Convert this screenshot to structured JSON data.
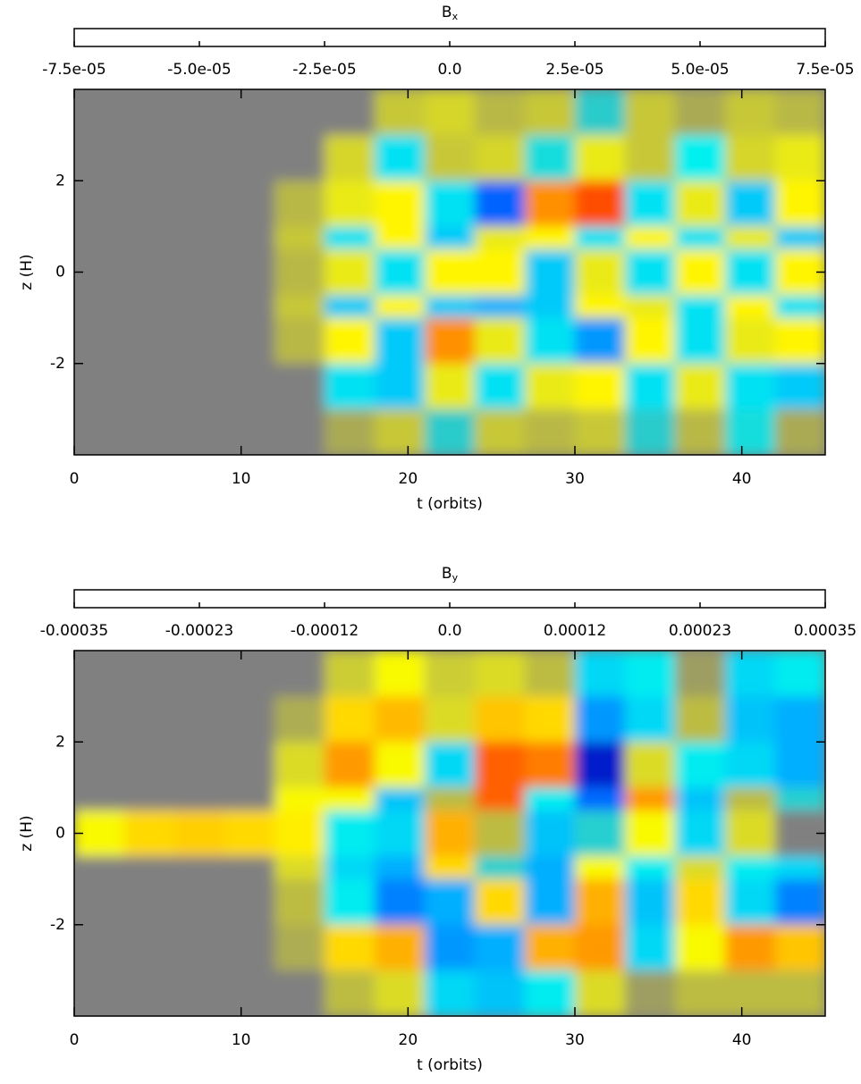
{
  "chart_data": [
    {
      "type": "heatmap",
      "title": "B",
      "title_sub": "x",
      "xlabel": "t (orbits)",
      "ylabel": "z (H)",
      "xlim": [
        0,
        45
      ],
      "ylim": [
        -4,
        4
      ],
      "xticks": [
        0,
        10,
        20,
        30,
        40
      ],
      "yticks": [
        -2,
        0,
        2
      ],
      "clim": [
        -7.5e-05,
        7.5e-05
      ],
      "cticks": [
        {
          "value": -7.5e-05,
          "label": "-7.5e-05"
        },
        {
          "value": -5e-05,
          "label": "-5.0e-05"
        },
        {
          "value": -2.5e-05,
          "label": "-2.5e-05"
        },
        {
          "value": 0,
          "label": "0.0"
        },
        {
          "value": 2.5e-05,
          "label": "2.5e-05"
        },
        {
          "value": 5e-05,
          "label": "5.0e-05"
        },
        {
          "value": 7.5e-05,
          "label": "7.5e-05"
        }
      ],
      "colormap": [
        {
          "at": 0,
          "color": "#000080"
        },
        {
          "at": 0.17,
          "color": "#0030ff"
        },
        {
          "at": 0.33,
          "color": "#00b0ff"
        },
        {
          "at": 0.42,
          "color": "#00f0f0"
        },
        {
          "at": 0.5,
          "color": "#808080"
        },
        {
          "at": 0.62,
          "color": "#ffff00"
        },
        {
          "at": 0.75,
          "color": "#ffa000"
        },
        {
          "at": 0.88,
          "color": "#ff2000"
        },
        {
          "at": 1,
          "color": "#800000"
        }
      ],
      "xbins": [
        0,
        3,
        6,
        9,
        12,
        15,
        18,
        21,
        24,
        27,
        30,
        33,
        36,
        39,
        42,
        45
      ],
      "ybins": [
        4,
        3,
        2,
        1,
        0.5,
        -0.5,
        -1,
        -2,
        -3,
        -4
      ],
      "values": [
        [
          0,
          0,
          0,
          0,
          0,
          0,
          1e-05,
          1.2e-05,
          8e-06,
          1e-05,
          -8e-06,
          1e-05,
          6e-06,
          1e-05,
          8e-06
        ],
        [
          0,
          0,
          0,
          0,
          0,
          1.2e-05,
          -1.5e-05,
          1e-05,
          1.2e-05,
          -1e-05,
          1.5e-05,
          1e-05,
          -1.2e-05,
          1.2e-05,
          1.5e-05
        ],
        [
          0,
          0,
          0,
          0,
          8e-06,
          1.5e-05,
          2e-05,
          -1.5e-05,
          -4e-05,
          4e-05,
          5e-05,
          -1.5e-05,
          1.5e-05,
          -2e-05,
          2e-05
        ],
        [
          0,
          0,
          0,
          0,
          1e-05,
          -1.5e-05,
          2e-05,
          -2e-05,
          1.5e-05,
          2e-05,
          -1.5e-05,
          2e-05,
          -1.5e-05,
          1.5e-05,
          -2e-05
        ],
        [
          0,
          0,
          0,
          0,
          8e-06,
          1.5e-05,
          -1.5e-05,
          2e-05,
          2e-05,
          -2e-05,
          1.5e-05,
          -1.5e-05,
          2e-05,
          -1.5e-05,
          2e-05
        ],
        [
          0,
          0,
          0,
          0,
          1e-05,
          -2e-05,
          2e-05,
          -2e-05,
          -2.5e-05,
          -2e-05,
          2e-05,
          1.5e-05,
          -1.5e-05,
          2e-05,
          -1.5e-05
        ],
        [
          0,
          0,
          0,
          0,
          8e-06,
          2e-05,
          -2e-05,
          4e-05,
          1.5e-05,
          -1.5e-05,
          -3e-05,
          2e-05,
          -1.5e-05,
          1.5e-05,
          2e-05
        ],
        [
          0,
          0,
          0,
          0,
          0,
          -1.5e-05,
          -2e-05,
          1.5e-05,
          -1.5e-05,
          1.5e-05,
          2e-05,
          -1.5e-05,
          1.5e-05,
          -1.5e-05,
          -2e-05
        ],
        [
          0,
          0,
          0,
          0,
          0,
          6e-06,
          1e-05,
          -8e-06,
          1e-05,
          8e-06,
          1e-05,
          -8e-06,
          8e-06,
          -1e-05,
          6e-06
        ]
      ]
    },
    {
      "type": "heatmap",
      "title": "B",
      "title_sub": "y",
      "xlabel": "t (orbits)",
      "ylabel": "z (H)",
      "xlim": [
        0,
        45
      ],
      "ylim": [
        -4,
        4
      ],
      "xticks": [
        0,
        10,
        20,
        30,
        40
      ],
      "yticks": [
        -2,
        0,
        2
      ],
      "clim": [
        -0.00035,
        0.00035
      ],
      "cticks": [
        -0.00035,
        {
          "value": -0.00023333,
          "label": "-0.00023"
        },
        {
          "value": -0.00011667,
          "label": "-0.00012"
        },
        {
          "value": 0,
          "label": "0.0"
        },
        {
          "value": 0.00011667,
          "label": "0.00012"
        },
        {
          "value": 0.00023333,
          "label": "0.00023"
        },
        0.00035
      ],
      "colormap": [
        {
          "at": 0,
          "color": "#000080"
        },
        {
          "at": 0.17,
          "color": "#0030ff"
        },
        {
          "at": 0.33,
          "color": "#00b0ff"
        },
        {
          "at": 0.42,
          "color": "#00f0f0"
        },
        {
          "at": 0.5,
          "color": "#808080"
        },
        {
          "at": 0.62,
          "color": "#ffff00"
        },
        {
          "at": 0.75,
          "color": "#ffa000"
        },
        {
          "at": 0.88,
          "color": "#ff2000"
        },
        {
          "at": 1,
          "color": "#800000"
        }
      ],
      "xbins": [
        0,
        3,
        6,
        9,
        12,
        15,
        18,
        21,
        24,
        27,
        30,
        33,
        36,
        39,
        42,
        45
      ],
      "ybins": [
        4,
        3,
        2,
        1,
        0.5,
        -0.5,
        -1,
        -2,
        -3,
        -4
      ],
      "values": [
        [
          0,
          0,
          0,
          0,
          0,
          5e-05,
          8e-05,
          5e-05,
          6e-05,
          4e-05,
          -8e-05,
          -6e-05,
          2e-05,
          -8e-05,
          -6e-05
        ],
        [
          0,
          0,
          0,
          0,
          3e-05,
          0.00012,
          0.00015,
          6e-05,
          0.00014,
          0.00012,
          -0.00014,
          -8e-05,
          4e-05,
          -0.0001,
          -0.00012
        ],
        [
          0,
          0,
          0,
          0,
          6e-05,
          0.00018,
          8e-05,
          -8e-05,
          0.00022,
          0.0002,
          -0.00028,
          6e-05,
          -6e-05,
          -8e-05,
          -0.00012
        ],
        [
          0,
          0,
          0,
          0,
          8e-05,
          8e-05,
          -0.0001,
          4e-05,
          0.00022,
          -6e-05,
          -0.00018,
          0.00018,
          -0.0001,
          4e-05,
          -4e-05
        ],
        [
          8e-05,
          0.00012,
          0.00013,
          0.00012,
          0.0001,
          -6e-05,
          -8e-05,
          0.00016,
          4e-05,
          -0.0001,
          -4e-05,
          8e-05,
          -8e-05,
          6e-05,
          0
        ],
        [
          0,
          0,
          0,
          0,
          6e-05,
          -8e-05,
          -0.00012,
          0.00012,
          -4e-05,
          -0.00012,
          8e-05,
          -6e-05,
          6e-05,
          -6e-05,
          -8e-05
        ],
        [
          0,
          0,
          0,
          0,
          4e-05,
          -6e-05,
          -0.00016,
          -0.00012,
          0.00012,
          -0.00012,
          0.00016,
          -0.0001,
          0.00012,
          -8e-05,
          -0.00016
        ],
        [
          0,
          0,
          0,
          0,
          3e-05,
          0.00012,
          0.00016,
          -0.00014,
          -0.00012,
          0.00016,
          0.00018,
          -8e-05,
          8e-05,
          0.00018,
          0.00014
        ],
        [
          0,
          0,
          0,
          0,
          0,
          4e-05,
          6e-05,
          -8e-05,
          -0.0001,
          -6e-05,
          6e-05,
          2e-05,
          4e-05,
          4e-05,
          4e-05
        ]
      ]
    }
  ]
}
